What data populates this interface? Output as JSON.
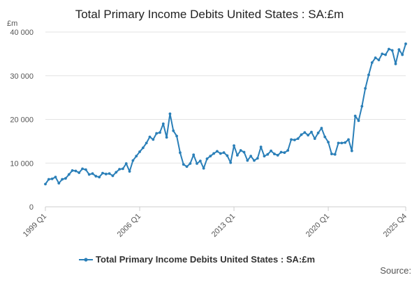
{
  "chart_data": {
    "type": "line",
    "title": "Total Primary Income Debits United States : SA:£m",
    "unit_label": "£m",
    "xlabel": "",
    "ylabel": "",
    "ylim": [
      0,
      40000
    ],
    "y_ticks": [
      0,
      10000,
      20000,
      30000,
      40000
    ],
    "y_tick_labels": [
      "0",
      "10 000",
      "20 000",
      "30 000",
      "40 000"
    ],
    "x_tick_labels": [
      "1999 Q1",
      "2006 Q1",
      "2013 Q1",
      "2020 Q1",
      "2025 Q4"
    ],
    "x_tick_index": [
      0,
      28,
      56,
      84,
      107
    ],
    "grid": true,
    "legend_position": "bottom",
    "source_label": "Source:",
    "series": [
      {
        "name": "Total Primary Income Debits United States : SA:£m",
        "color": "#2A7FB8",
        "values": [
          5200,
          6300,
          6400,
          6800,
          5400,
          6300,
          6500,
          7400,
          8300,
          8200,
          7800,
          8700,
          8500,
          7400,
          7600,
          7000,
          6800,
          7700,
          7500,
          7600,
          7100,
          7900,
          8600,
          8700,
          9900,
          8100,
          10600,
          11600,
          12600,
          13500,
          14600,
          16000,
          15400,
          16800,
          17000,
          19000,
          15900,
          21300,
          17400,
          16200,
          12400,
          9700,
          9200,
          9900,
          11900,
          9900,
          10500,
          8800,
          11000,
          11600,
          12200,
          12700,
          12200,
          12400,
          11700,
          10100,
          14000,
          11800,
          12900,
          12500,
          10600,
          11600,
          10600,
          11100,
          13700,
          11600,
          12000,
          12800,
          12100,
          11800,
          12500,
          12400,
          12900,
          15400,
          15300,
          15600,
          16500,
          17000,
          16400,
          17100,
          15600,
          16900,
          18000,
          16000,
          14800,
          12100,
          12000,
          14600,
          14600,
          14700,
          15400,
          12800,
          20800,
          19700,
          23000,
          27100,
          30200,
          33000,
          34100,
          33600,
          35000,
          34800,
          36100,
          35800,
          32700,
          36000,
          34800,
          37300
        ]
      }
    ]
  }
}
